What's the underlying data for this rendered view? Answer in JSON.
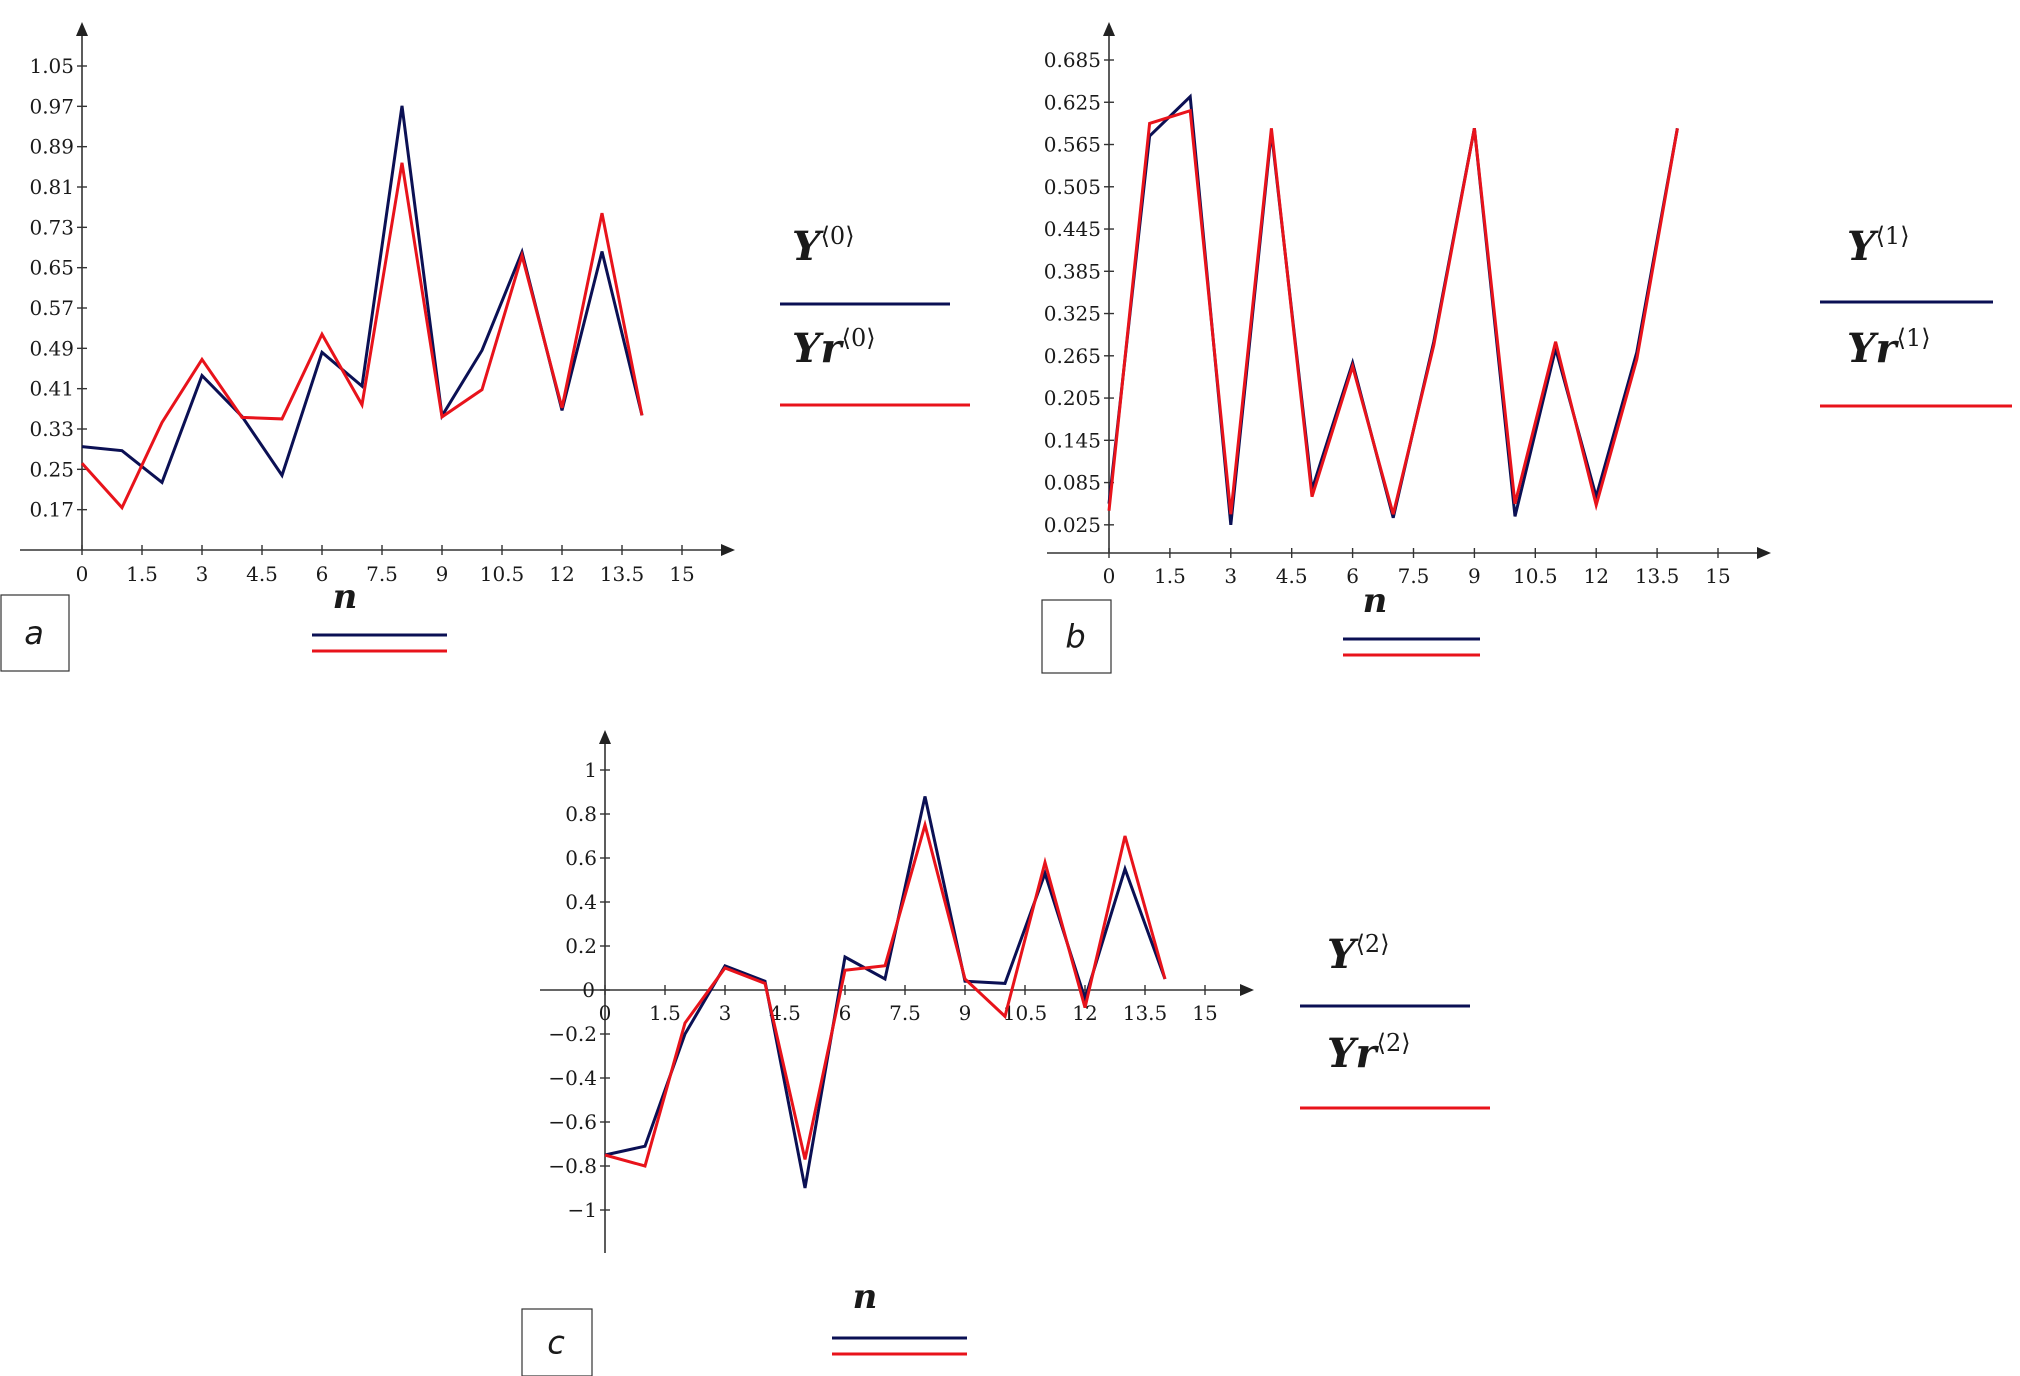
{
  "colors": {
    "series_y": "#0b1054",
    "series_yr": "#e8131b",
    "axis": "#333333"
  },
  "chart_data": [
    {
      "type": "line",
      "panel_label": "a",
      "xlabel": "n",
      "xlim": [
        0,
        15
      ],
      "ylim": [
        0.09,
        1.13
      ],
      "x_ticks": [
        0,
        1.5,
        3,
        4.5,
        6,
        7.5,
        9,
        10.5,
        12,
        13.5,
        15
      ],
      "x_tick_labels": [
        "0",
        "1.5",
        "3",
        "4.5",
        "6",
        "7.5",
        "9",
        "10.5",
        "12",
        "13.5",
        "15"
      ],
      "y_ticks": [
        0.17,
        0.25,
        0.33,
        0.41,
        0.49,
        0.57,
        0.65,
        0.73,
        0.81,
        0.89,
        0.97,
        1.05
      ],
      "y_tick_labels": [
        "0.17",
        "0.25",
        "0.33",
        "0.41",
        "0.49",
        "0.57",
        "0.65",
        "0.73",
        "0.81",
        "0.89",
        "0.97",
        "1.05"
      ],
      "x": [
        0,
        1,
        2,
        3,
        4,
        5,
        6,
        7,
        8,
        9,
        10,
        11,
        12,
        13,
        14
      ],
      "series": [
        {
          "name": "Y",
          "superscript": "⟨0⟩",
          "values": [
            0.295,
            0.287,
            0.224,
            0.436,
            0.355,
            0.238,
            0.482,
            0.415,
            0.971,
            0.356,
            0.486,
            0.681,
            0.367,
            0.682,
            0.357
          ]
        },
        {
          "name": "Yr",
          "superscript": "⟨0⟩",
          "values": [
            0.262,
            0.174,
            0.343,
            0.468,
            0.353,
            0.35,
            0.518,
            0.378,
            0.858,
            0.354,
            0.408,
            0.674,
            0.372,
            0.758,
            0.357
          ]
        }
      ]
    },
    {
      "type": "line",
      "panel_label": "b",
      "xlabel": "n",
      "xlim": [
        0,
        15
      ],
      "ylim": [
        -0.015,
        0.725
      ],
      "x_ticks": [
        0,
        1.5,
        3,
        4.5,
        6,
        7.5,
        9,
        10.5,
        12,
        13.5,
        15
      ],
      "x_tick_labels": [
        "0",
        "1.5",
        "3",
        "4.5",
        "6",
        "7.5",
        "9",
        "10.5",
        "12",
        "13.5",
        "15"
      ],
      "y_ticks": [
        0.025,
        0.085,
        0.145,
        0.205,
        0.265,
        0.325,
        0.385,
        0.445,
        0.505,
        0.565,
        0.625,
        0.685
      ],
      "y_tick_labels": [
        "0.025",
        "0.085",
        "0.145",
        "0.205",
        "0.265",
        "0.325",
        "0.385",
        "0.445",
        "0.505",
        "0.565",
        "0.625",
        "0.685"
      ],
      "x": [
        0,
        1,
        2,
        3,
        4,
        5,
        6,
        7,
        8,
        9,
        10,
        11,
        12,
        13,
        14
      ],
      "series": [
        {
          "name": "Y",
          "superscript": "⟨1⟩",
          "values": [
            0.055,
            0.577,
            0.633,
            0.025,
            0.583,
            0.075,
            0.255,
            0.035,
            0.285,
            0.588,
            0.037,
            0.275,
            0.065,
            0.27,
            0.588
          ]
        },
        {
          "name": "Yr",
          "superscript": "⟨1⟩",
          "values": [
            0.045,
            0.595,
            0.613,
            0.04,
            0.588,
            0.065,
            0.25,
            0.04,
            0.28,
            0.588,
            0.055,
            0.285,
            0.053,
            0.26,
            0.588
          ]
        }
      ]
    },
    {
      "type": "line",
      "panel_label": "c",
      "xlabel": "n",
      "xlim": [
        0,
        15
      ],
      "ylim": [
        -1.2,
        1.2
      ],
      "x_ticks": [
        0,
        1.5,
        3,
        4.5,
        6,
        7.5,
        9,
        10.5,
        12,
        13.5,
        15
      ],
      "x_tick_labels": [
        "0",
        "1.5",
        "3",
        "4.5",
        "6",
        "7.5",
        "9",
        "10.5",
        "12",
        "13.5",
        "15"
      ],
      "y_ticks": [
        -1,
        -0.8,
        -0.6,
        -0.4,
        -0.2,
        0,
        0.2,
        0.4,
        0.6,
        0.8,
        1
      ],
      "y_tick_labels": [
        "−1",
        "−0.8",
        "−0.6",
        "−0.4",
        "−0.2",
        "0",
        "0.2",
        "0.4",
        "0.6",
        "0.8",
        "1"
      ],
      "x": [
        0,
        1,
        2,
        3,
        4,
        5,
        6,
        7,
        8,
        9,
        10,
        11,
        12,
        13,
        14
      ],
      "series": [
        {
          "name": "Y",
          "superscript": "⟨2⟩",
          "values": [
            -0.75,
            -0.71,
            -0.2,
            0.11,
            0.04,
            -0.9,
            0.15,
            0.05,
            0.88,
            0.04,
            0.03,
            0.53,
            -0.04,
            0.55,
            0.05
          ]
        },
        {
          "name": "Yr",
          "superscript": "⟨2⟩",
          "values": [
            -0.75,
            -0.8,
            -0.15,
            0.1,
            0.03,
            -0.77,
            0.09,
            0.11,
            0.75,
            0.05,
            -0.12,
            0.58,
            -0.08,
            0.7,
            0.05
          ]
        }
      ]
    }
  ]
}
